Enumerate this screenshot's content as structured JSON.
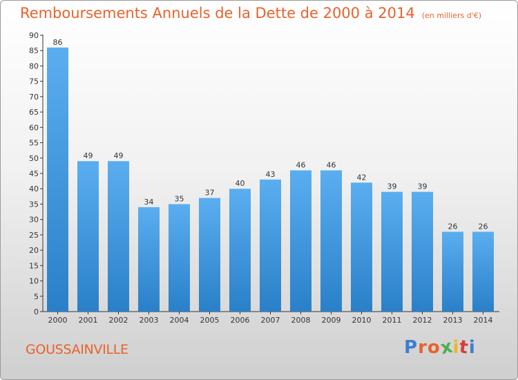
{
  "title": "Remboursements Annuels de la Dette de 2000 à 2014",
  "subtitle": "(en milliers d'€)",
  "location": "GOUSSAINVILLE",
  "brand": "Proxiti",
  "colors": {
    "accent": "#e8622b",
    "bar_top": "#5aaef0",
    "bar_bottom": "#2a80c8",
    "brand_letters": [
      "#3a7fd0",
      "#e8622b",
      "#e8622b",
      "#4caf50",
      "#f2b227",
      "#d63b3b",
      "#3a7fd0"
    ]
  },
  "chart_data": {
    "type": "bar",
    "title": "Remboursements Annuels de la Dette de 2000 à 2014",
    "subtitle": "(en milliers d'€)",
    "categories": [
      "2000",
      "2001",
      "2002",
      "2003",
      "2004",
      "2005",
      "2006",
      "2007",
      "2008",
      "2009",
      "2010",
      "2011",
      "2012",
      "2013",
      "2014"
    ],
    "values": [
      86,
      49,
      49,
      34,
      35,
      37,
      40,
      43,
      46,
      46,
      42,
      39,
      39,
      26,
      26
    ],
    "ylim": [
      0,
      90
    ],
    "yticks": [
      0,
      5,
      10,
      15,
      20,
      25,
      30,
      35,
      40,
      45,
      50,
      55,
      60,
      65,
      70,
      75,
      80,
      85,
      90
    ],
    "xlabel": "",
    "ylabel": "",
    "grid": false,
    "legend": "none"
  }
}
